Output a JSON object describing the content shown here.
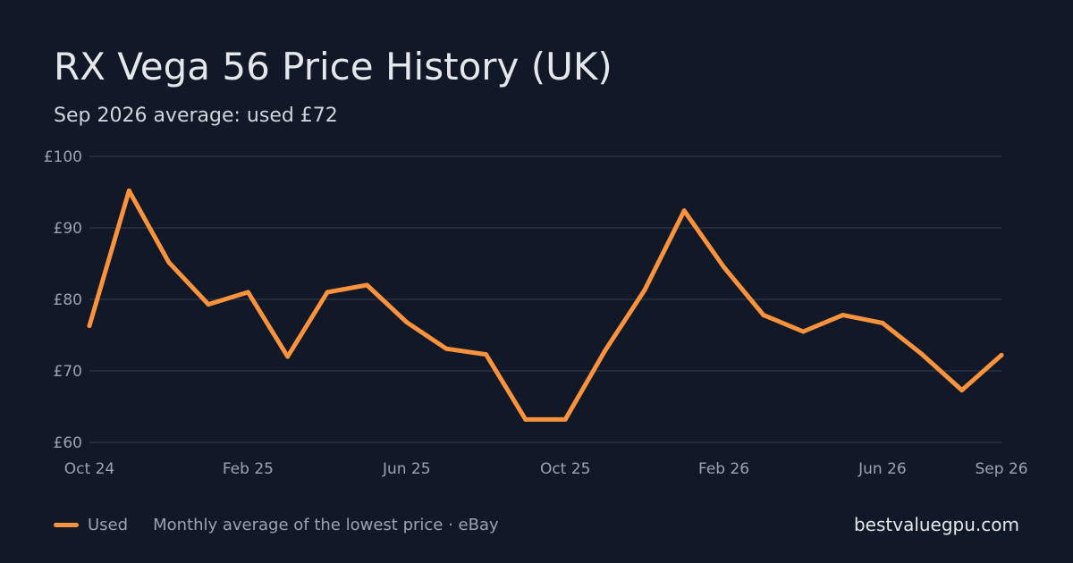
{
  "header": {
    "title": "RX Vega 56 Price History (UK)",
    "subtitle": "Sep 2026 average: used £72"
  },
  "colors": {
    "background": "#111827",
    "series_used": "#fb923c",
    "grid": "#273244",
    "muted_text": "#9ca3af"
  },
  "chart_data": {
    "type": "line",
    "title": "RX Vega 56 Price History (UK)",
    "subtitle": "Sep 2026 average: used £72",
    "xlabel": "",
    "ylabel": "",
    "x": [
      "Oct 24",
      "Nov 24",
      "Dec 24",
      "Jan 25",
      "Feb 25",
      "Mar 25",
      "Apr 25",
      "May 25",
      "Jun 25",
      "Jul 25",
      "Aug 25",
      "Sep 25",
      "Oct 25",
      "Nov 25",
      "Dec 25",
      "Jan 26",
      "Feb 26",
      "Mar 26",
      "Apr 26",
      "May 26",
      "Jun 26",
      "Jul 26",
      "Aug 26",
      "Sep 26"
    ],
    "x_tick_labels": [
      {
        "label": "Oct 24",
        "index": 0
      },
      {
        "label": "Feb 25",
        "index": 4
      },
      {
        "label": "Jun 25",
        "index": 8
      },
      {
        "label": "Oct 25",
        "index": 12
      },
      {
        "label": "Feb 26",
        "index": 16
      },
      {
        "label": "Jun 26",
        "index": 20
      },
      {
        "label": "Sep 26",
        "index": 23
      }
    ],
    "y_ticks": [
      60,
      70,
      80,
      90,
      100
    ],
    "y_tick_labels": [
      "£60",
      "£70",
      "£80",
      "£90",
      "£100"
    ],
    "ylim": [
      60,
      100
    ],
    "grid": true,
    "legend_position": "bottom-left",
    "series": [
      {
        "name": "Used",
        "color": "#fb923c",
        "values": [
          76.3,
          95.2,
          85.2,
          79.3,
          81.0,
          72.0,
          81.0,
          82.0,
          76.8,
          73.1,
          72.3,
          63.2,
          63.2,
          72.8,
          81.3,
          92.4,
          84.5,
          77.8,
          75.5,
          77.8,
          76.7,
          72.3,
          67.3,
          72.2
        ]
      }
    ]
  },
  "footer": {
    "legend_label": "Used",
    "source_note": "Monthly average of the lowest price · eBay",
    "site": "bestvaluegpu.com"
  }
}
